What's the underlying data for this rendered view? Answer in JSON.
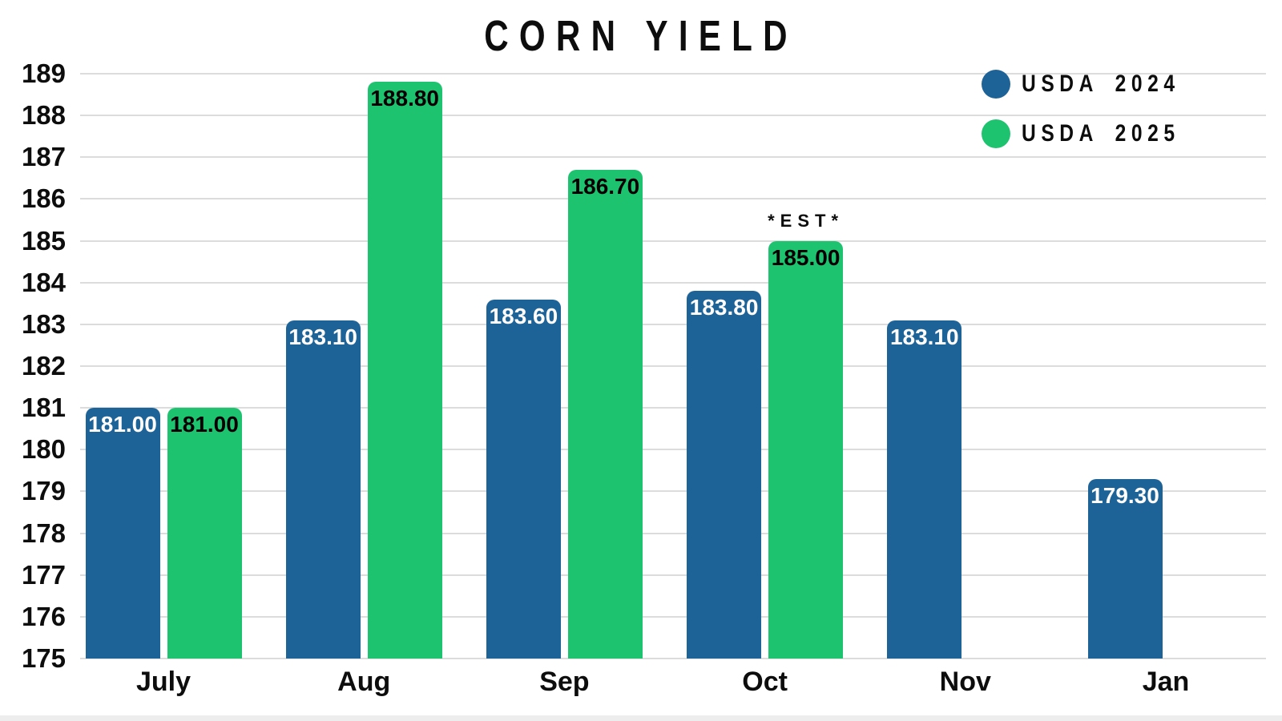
{
  "title": "CORN YIELD",
  "legend": {
    "items": [
      {
        "label": "USDA 2024",
        "color": "#1d6398"
      },
      {
        "label": "USDA 2025",
        "color": "#1ec36f"
      }
    ]
  },
  "colors": {
    "series_2024": "#1d6398",
    "series_2025": "#1ec36f",
    "gridline": "#dcdcdc",
    "text": "#0d0d0d",
    "value_label_on_blue": "#ffffff",
    "value_label_on_green": "#000000"
  },
  "chart_data": {
    "type": "bar",
    "title": "CORN YIELD",
    "categories": [
      "July",
      "Aug",
      "Sep",
      "Oct",
      "Nov",
      "Jan"
    ],
    "series": [
      {
        "name": "USDA 2024",
        "color": "#1d6398",
        "value_label_color": "#ffffff",
        "values": [
          181.0,
          183.1,
          183.6,
          183.8,
          183.1,
          179.3
        ]
      },
      {
        "name": "USDA 2025",
        "color": "#1ec36f",
        "value_label_color": "#000000",
        "values": [
          181.0,
          188.8,
          186.7,
          185.0,
          null,
          null
        ]
      }
    ],
    "value_labels": "inside-top",
    "value_label_format": "2dp",
    "annotations": [
      {
        "text": "*EST*",
        "category": "Oct",
        "series": "USDA 2025",
        "position": "above-bar"
      }
    ],
    "xlabel": "",
    "ylabel": "",
    "ylim": [
      175,
      189
    ],
    "ytick_step": 1,
    "yticks": [
      175,
      176,
      177,
      178,
      179,
      180,
      181,
      182,
      183,
      184,
      185,
      186,
      187,
      188,
      189
    ],
    "grid": "horizontal",
    "legend_position": "top-right"
  }
}
